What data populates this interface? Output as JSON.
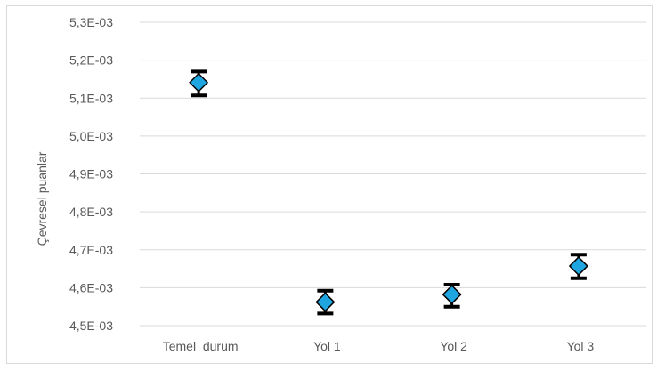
{
  "chart_data": {
    "type": "scatter",
    "title": "",
    "xlabel": "",
    "ylabel": "Çevresel puanlar",
    "categories": [
      "Temel  durum",
      "Yol 1",
      "Yol 2",
      "Yol 3"
    ],
    "series": [
      {
        "values": [
          0.005141,
          0.004562,
          0.004582,
          0.004657
        ],
        "error_lower": [
          0.005107,
          0.004532,
          0.00455,
          0.004625
        ],
        "error_upper": [
          0.00517,
          0.004592,
          0.004608,
          0.004687
        ],
        "marker": "diamond",
        "marker_color": "#1fa6e0"
      }
    ],
    "ylim": [
      0.0045,
      0.0053
    ],
    "yticks": [
      0.0045,
      0.0046,
      0.0047,
      0.0048,
      0.0049,
      0.005,
      0.0051,
      0.0052,
      0.0053
    ],
    "ytick_labels": [
      "4,5E-03",
      "4,6E-03",
      "4,7E-03",
      "4,8E-03",
      "4,9E-03",
      "5,0E-03",
      "5,1E-03",
      "5,2E-03",
      "5,3E-03"
    ],
    "grid": true,
    "legend": "none",
    "colors": {
      "gridline": "#d9d9d9",
      "axis_line": "#d9d9d9",
      "text": "#595959",
      "marker_fill": "#1fa6e0",
      "marker_stroke": "#000000",
      "error_bar": "#000000"
    }
  }
}
